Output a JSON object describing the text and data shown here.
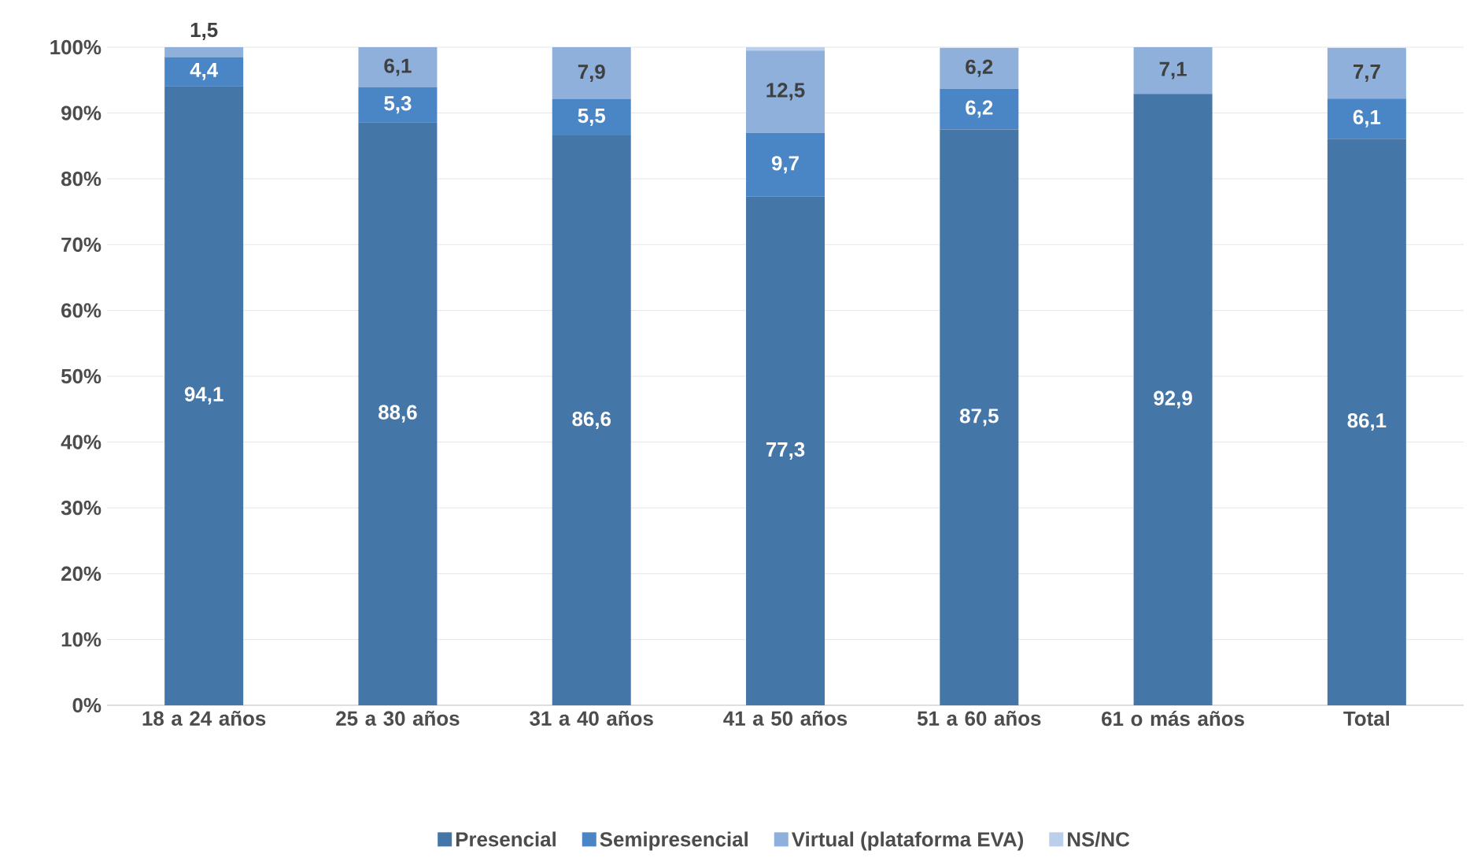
{
  "chart_data": {
    "type": "bar",
    "stacked": true,
    "categories": [
      "18 a 24 años",
      "25 a 30 años",
      "31 a 40 años",
      "41 a 50 años",
      "51 a 60 años",
      "61 o más años",
      "Total"
    ],
    "series": [
      {
        "name": "Presencial",
        "color": "#4576a8",
        "values": [
          94.1,
          88.6,
          86.6,
          77.3,
          87.5,
          92.9,
          86.1
        ],
        "value_labels": [
          "94,1",
          "88,6",
          "86,6",
          "77,3",
          "87,5",
          "92,9",
          "86,1"
        ]
      },
      {
        "name": "Semipresencial",
        "color": "#4a86c5",
        "values": [
          4.4,
          5.3,
          5.5,
          9.7,
          6.2,
          null,
          6.1
        ],
        "value_labels": [
          "4,4",
          "5,3",
          "5,5",
          "9,7",
          "6,2",
          null,
          "6,1"
        ]
      },
      {
        "name": "Virtual (plataforma EVA)",
        "color": "#8eb0db",
        "values": [
          1.5,
          6.1,
          7.9,
          12.5,
          6.2,
          7.1,
          7.7
        ],
        "value_labels": [
          "1,5",
          "6,1",
          "7,9",
          "12,5",
          "6,2",
          "7,1",
          "7,7"
        ]
      },
      {
        "name": "NS/NC",
        "color": "#bccfea",
        "values": [
          null,
          null,
          null,
          0.5,
          null,
          null,
          null
        ],
        "value_labels": [
          null,
          null,
          null,
          null,
          null,
          null,
          null
        ]
      }
    ],
    "ylim": [
      0,
      100
    ],
    "yticks": [
      {
        "value": 0,
        "label": "0%"
      },
      {
        "value": 10,
        "label": "10%"
      },
      {
        "value": 20,
        "label": "20%"
      },
      {
        "value": 30,
        "label": "30%"
      },
      {
        "value": 40,
        "label": "40%"
      },
      {
        "value": 50,
        "label": "50%"
      },
      {
        "value": 60,
        "label": "60%"
      },
      {
        "value": 70,
        "label": "70%"
      },
      {
        "value": 80,
        "label": "80%"
      },
      {
        "value": 90,
        "label": "90%"
      },
      {
        "value": 100,
        "label": "100%"
      }
    ],
    "grid": "y",
    "legend": "bottom"
  }
}
